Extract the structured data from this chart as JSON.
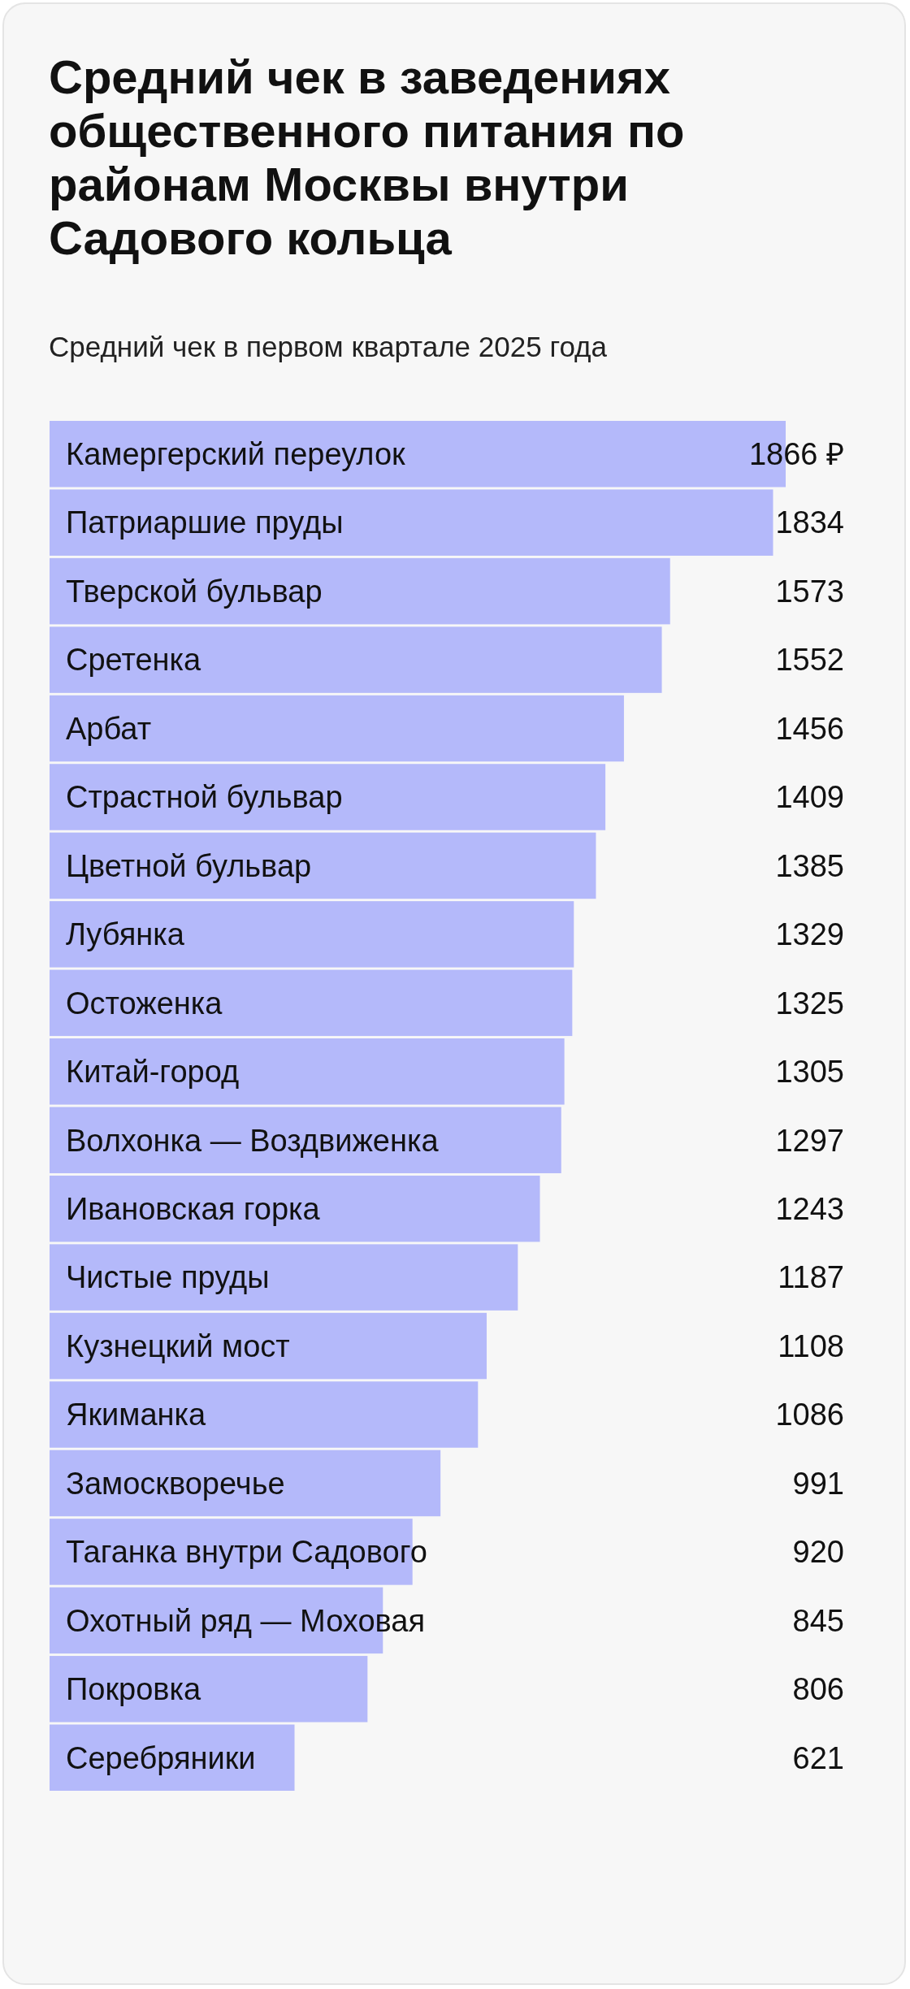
{
  "chart_data": {
    "type": "bar",
    "orientation": "horizontal",
    "title": "Средний чек в заведениях общественного питания по районам Москвы внутри Садового кольца",
    "subtitle": "Средний чек в первом квартале 2025 года",
    "categories": [
      "Камергерский переулок",
      "Патриаршие пруды",
      "Тверской бульвар",
      "Сретенка",
      "Арбат",
      "Страстной бульвар",
      "Цветной бульвар",
      "Лубянка",
      "Остоженка",
      "Китай-город",
      "Волхонка — Воздвиженка",
      "Ивановская горка",
      "Чистые пруды",
      "Кузнецкий мост",
      "Якиманка",
      "Замоскворечье",
      "Таганка внутри Садового",
      "Охотный ряд — Моховая",
      "Покровка",
      "Серебряники"
    ],
    "values": [
      1866,
      1834,
      1573,
      1552,
      1456,
      1409,
      1385,
      1329,
      1325,
      1305,
      1297,
      1243,
      1187,
      1108,
      1086,
      991,
      920,
      845,
      806,
      621
    ],
    "value_labels": [
      "1866 ₽",
      "1834",
      "1573",
      "1552",
      "1456",
      "1409",
      "1385",
      "1329",
      "1325",
      "1305",
      "1297",
      "1243",
      "1187",
      "1108",
      "1086",
      "991",
      "920",
      "845",
      "806",
      "621"
    ],
    "color": "#b4b9fa"
  }
}
